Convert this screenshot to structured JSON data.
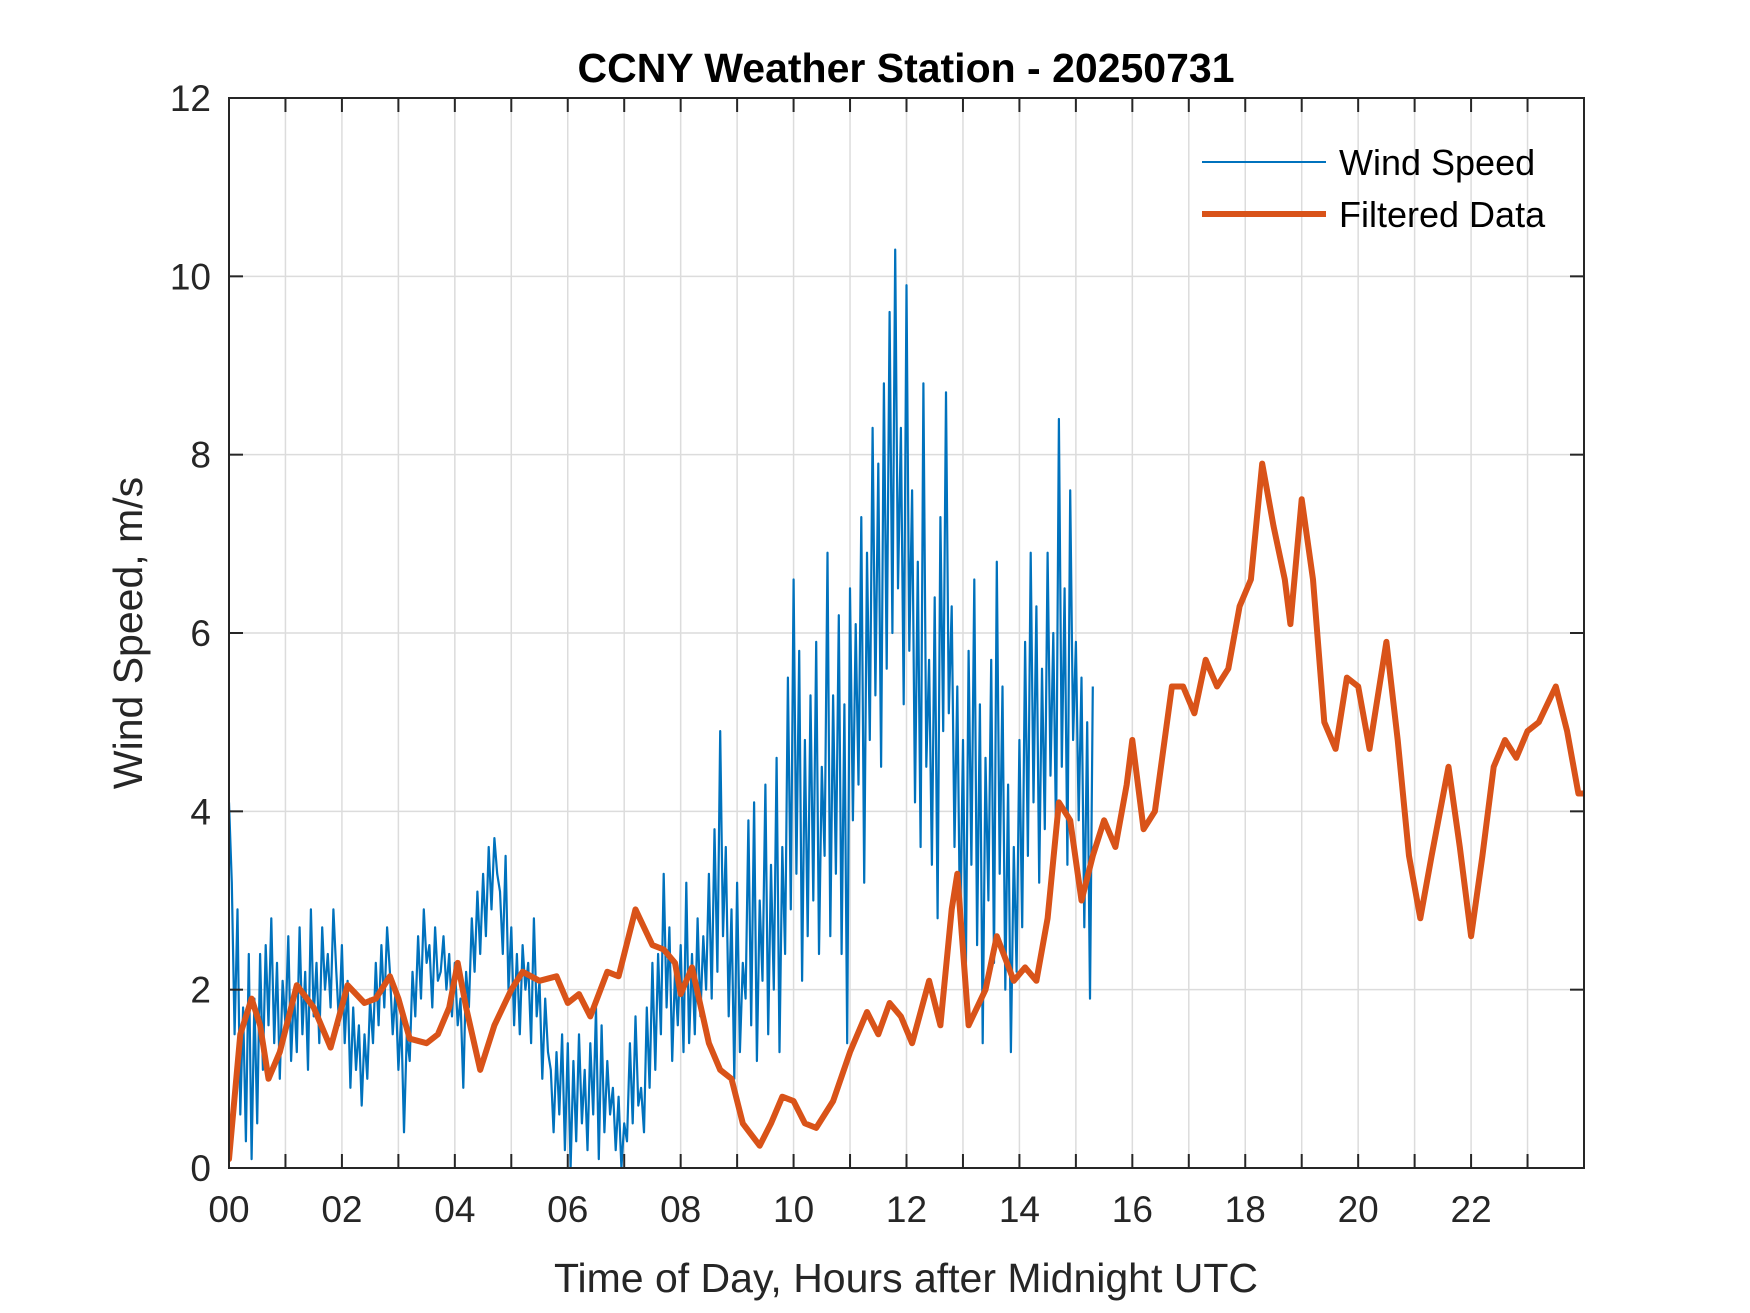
{
  "chart_data": {
    "type": "line",
    "title": "CCNY Weather Station - 20250731",
    "xlabel": "Time of Day, Hours after Midnight UTC",
    "ylabel": "Wind Speed, m/s",
    "xlim": [
      0,
      24
    ],
    "ylim": [
      0,
      12
    ],
    "grid": true,
    "x_ticks": [
      0,
      2,
      4,
      6,
      8,
      10,
      12,
      14,
      16,
      18,
      20,
      22
    ],
    "x_tick_labels": [
      "00",
      "02",
      "04",
      "06",
      "08",
      "10",
      "12",
      "14",
      "16",
      "18",
      "20",
      "22"
    ],
    "x_minor_grid_step": 1,
    "y_ticks": [
      0,
      2,
      4,
      6,
      8,
      10,
      12
    ],
    "y_tick_labels": [
      "0",
      "2",
      "4",
      "6",
      "8",
      "10",
      "12"
    ],
    "legend": {
      "placement": "top-right",
      "boxed": false,
      "entries": [
        "Wind Speed",
        "Filtered Data"
      ]
    },
    "series": [
      {
        "name": "Wind Speed",
        "color": "#0072BD",
        "style": "thin",
        "x_start": 0,
        "x_step": 0.05,
        "values": [
          4.1,
          3.2,
          1.5,
          2.9,
          0.6,
          1.8,
          0.3,
          2.4,
          0.1,
          1.9,
          0.5,
          2.4,
          1.1,
          2.5,
          1.6,
          2.8,
          1.4,
          2.3,
          1.0,
          2.1,
          1.6,
          2.6,
          1.2,
          2.0,
          1.3,
          2.7,
          1.5,
          2.2,
          1.1,
          2.9,
          1.7,
          2.3,
          1.4,
          2.7,
          2.0,
          2.4,
          1.8,
          2.9,
          2.2,
          1.6,
          2.5,
          1.4,
          2.1,
          0.9,
          1.8,
          1.1,
          1.6,
          0.7,
          1.5,
          1.0,
          1.9,
          1.4,
          2.3,
          1.6,
          2.5,
          1.8,
          2.7,
          2.2,
          1.5,
          2.0,
          1.1,
          1.7,
          0.4,
          1.5,
          1.2,
          2.2,
          1.7,
          2.6,
          1.9,
          2.9,
          2.3,
          2.5,
          1.8,
          2.7,
          2.1,
          2.2,
          2.6,
          2.0,
          2.4,
          1.7,
          2.3,
          1.6,
          1.9,
          0.9,
          2.2,
          1.8,
          2.8,
          2.2,
          3.1,
          2.4,
          3.3,
          2.6,
          3.6,
          2.9,
          3.7,
          3.3,
          3.1,
          2.4,
          3.5,
          2.0,
          2.7,
          1.6,
          2.4,
          1.5,
          2.5,
          2.0,
          2.3,
          1.4,
          2.8,
          1.7,
          2.1,
          1.0,
          1.9,
          1.3,
          1.1,
          0.4,
          1.3,
          0.6,
          1.5,
          0.2,
          1.4,
          0.0,
          1.2,
          0.3,
          1.5,
          0.5,
          1.1,
          0.2,
          1.4,
          0.6,
          1.8,
          0.1,
          1.6,
          0.4,
          1.2,
          0.6,
          0.9,
          0.2,
          0.8,
          0.0,
          0.5,
          0.3,
          1.4,
          0.5,
          1.7,
          0.7,
          0.9,
          0.4,
          1.8,
          0.9,
          2.3,
          1.1,
          2.4,
          1.5,
          3.3,
          1.8,
          2.7,
          1.2,
          2.2,
          1.6,
          2.5,
          1.3,
          3.2,
          1.4,
          2.4,
          1.5,
          2.8,
          1.7,
          2.6,
          2.0,
          3.3,
          1.9,
          3.8,
          2.2,
          4.9,
          2.6,
          3.6,
          1.7,
          2.9,
          1.0,
          3.2,
          1.3,
          2.3,
          1.9,
          3.9,
          1.6,
          4.1,
          1.2,
          3.0,
          2.1,
          4.3,
          1.5,
          3.4,
          2.0,
          4.6,
          1.3,
          3.6,
          2.4,
          5.5,
          2.9,
          6.6,
          3.3,
          5.8,
          2.1,
          4.8,
          2.6,
          5.3,
          3.0,
          5.9,
          2.4,
          4.5,
          3.5,
          6.9,
          2.6,
          5.3,
          3.3,
          6.2,
          2.4,
          5.2,
          1.4,
          6.5,
          3.9,
          6.1,
          4.3,
          7.3,
          3.2,
          6.9,
          4.8,
          8.3,
          5.3,
          7.9,
          4.5,
          8.8,
          5.6,
          9.6,
          6.0,
          10.3,
          6.5,
          8.3,
          5.2,
          9.9,
          5.8,
          7.6,
          4.1,
          6.8,
          3.6,
          8.8,
          4.5,
          5.7,
          3.4,
          6.4,
          2.8,
          7.3,
          4.9,
          8.7,
          5.1,
          6.3,
          3.6,
          5.4,
          2.6,
          4.8,
          2.1,
          5.8,
          3.4,
          6.6,
          2.5,
          5.2,
          1.4,
          4.6,
          3.0,
          5.7,
          2.3,
          6.8,
          3.3,
          5.4,
          2.0,
          4.3,
          1.3,
          3.6,
          2.2,
          4.8,
          2.7,
          5.9,
          3.5,
          6.9,
          4.1,
          6.3,
          3.2,
          5.6,
          3.8,
          6.9,
          4.4,
          6.0,
          3.7,
          8.4,
          4.5,
          6.5,
          3.4,
          7.6,
          4.8,
          5.9,
          3.9,
          5.5,
          2.7,
          5.0,
          1.9,
          5.4
        ]
      },
      {
        "name": "Filtered Data",
        "color": "#D95319",
        "style": "thick",
        "points": [
          [
            0.0,
            0.1
          ],
          [
            0.2,
            1.5
          ],
          [
            0.4,
            1.9
          ],
          [
            0.55,
            1.6
          ],
          [
            0.7,
            1.0
          ],
          [
            0.9,
            1.3
          ],
          [
            1.2,
            2.05
          ],
          [
            1.5,
            1.8
          ],
          [
            1.8,
            1.35
          ],
          [
            2.1,
            2.05
          ],
          [
            2.4,
            1.85
          ],
          [
            2.6,
            1.9
          ],
          [
            2.85,
            2.15
          ],
          [
            3.0,
            1.9
          ],
          [
            3.2,
            1.45
          ],
          [
            3.5,
            1.4
          ],
          [
            3.7,
            1.5
          ],
          [
            3.9,
            1.8
          ],
          [
            4.05,
            2.3
          ],
          [
            4.2,
            1.8
          ],
          [
            4.45,
            1.1
          ],
          [
            4.7,
            1.6
          ],
          [
            5.0,
            2.0
          ],
          [
            5.2,
            2.2
          ],
          [
            5.5,
            2.1
          ],
          [
            5.8,
            2.15
          ],
          [
            6.0,
            1.85
          ],
          [
            6.2,
            1.95
          ],
          [
            6.4,
            1.7
          ],
          [
            6.7,
            2.2
          ],
          [
            6.9,
            2.15
          ],
          [
            7.2,
            2.9
          ],
          [
            7.5,
            2.5
          ],
          [
            7.7,
            2.45
          ],
          [
            7.9,
            2.3
          ],
          [
            8.0,
            1.95
          ],
          [
            8.2,
            2.25
          ],
          [
            8.5,
            1.4
          ],
          [
            8.7,
            1.1
          ],
          [
            8.9,
            1.0
          ],
          [
            9.1,
            0.5
          ],
          [
            9.4,
            0.25
          ],
          [
            9.6,
            0.5
          ],
          [
            9.8,
            0.8
          ],
          [
            10.0,
            0.75
          ],
          [
            10.2,
            0.5
          ],
          [
            10.4,
            0.45
          ],
          [
            10.7,
            0.75
          ],
          [
            11.0,
            1.3
          ],
          [
            11.3,
            1.75
          ],
          [
            11.5,
            1.5
          ],
          [
            11.7,
            1.85
          ],
          [
            11.9,
            1.7
          ],
          [
            12.1,
            1.4
          ],
          [
            12.4,
            2.1
          ],
          [
            12.6,
            1.6
          ],
          [
            12.8,
            2.9
          ],
          [
            12.9,
            3.3
          ],
          [
            13.1,
            1.6
          ],
          [
            13.4,
            2.0
          ],
          [
            13.6,
            2.6
          ],
          [
            13.9,
            2.1
          ],
          [
            14.1,
            2.25
          ],
          [
            14.3,
            2.1
          ],
          [
            14.5,
            2.8
          ],
          [
            14.7,
            4.1
          ],
          [
            14.9,
            3.9
          ],
          [
            15.1,
            3.0
          ],
          [
            15.3,
            3.5
          ],
          [
            15.5,
            3.9
          ],
          [
            15.7,
            3.6
          ],
          [
            15.9,
            4.3
          ],
          [
            16.0,
            4.8
          ],
          [
            16.2,
            3.8
          ],
          [
            16.4,
            4.0
          ],
          [
            16.7,
            5.4
          ],
          [
            16.9,
            5.4
          ],
          [
            17.1,
            5.1
          ],
          [
            17.3,
            5.7
          ],
          [
            17.5,
            5.4
          ],
          [
            17.7,
            5.6
          ],
          [
            17.9,
            6.3
          ],
          [
            18.1,
            6.6
          ],
          [
            18.3,
            7.9
          ],
          [
            18.5,
            7.2
          ],
          [
            18.7,
            6.6
          ],
          [
            18.8,
            6.1
          ],
          [
            19.0,
            7.5
          ],
          [
            19.2,
            6.6
          ],
          [
            19.4,
            5.0
          ],
          [
            19.6,
            4.7
          ],
          [
            19.8,
            5.5
          ],
          [
            20.0,
            5.4
          ],
          [
            20.2,
            4.7
          ],
          [
            20.5,
            5.9
          ],
          [
            20.7,
            4.8
          ],
          [
            20.9,
            3.5
          ],
          [
            21.1,
            2.8
          ],
          [
            21.3,
            3.5
          ],
          [
            21.6,
            4.5
          ],
          [
            21.8,
            3.6
          ],
          [
            22.0,
            2.6
          ],
          [
            22.2,
            3.5
          ],
          [
            22.4,
            4.5
          ],
          [
            22.6,
            4.8
          ],
          [
            22.8,
            4.6
          ],
          [
            23.0,
            4.9
          ],
          [
            23.2,
            5.0
          ],
          [
            23.5,
            5.4
          ],
          [
            23.7,
            4.9
          ],
          [
            23.9,
            4.2
          ],
          [
            24.0,
            4.2
          ]
        ]
      }
    ]
  }
}
